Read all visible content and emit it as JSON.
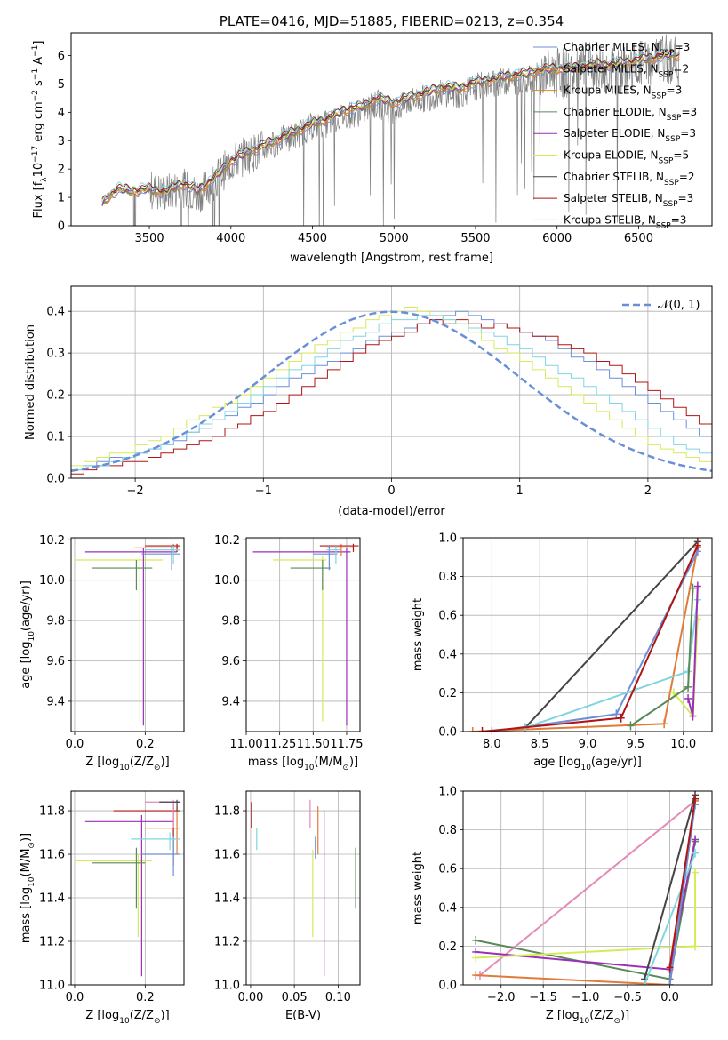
{
  "chart_data": [
    {
      "id": "spectrum",
      "type": "line",
      "title": "PLATE=0416, MJD=51885, FIBERID=0213, z=0.354",
      "xlabel": "wavelength [Angstrom, rest frame]",
      "ylabel": "Flux [f",
      "ylabel_sub": "λ",
      "ylabel_rest": "10",
      "ylabel_exp": "−17",
      "ylabel_tail": " erg cm",
      "ylabel_exp2": "−2",
      "ylabel_tail2": " s",
      "ylabel_exp3": "−1",
      "ylabel_tail3": " A",
      "ylabel_exp4": "−1",
      "ylabel_end": "]",
      "xlim": [
        3020,
        6950
      ],
      "ylim": [
        0,
        6.8
      ],
      "xticks": [
        3500,
        4000,
        4500,
        5000,
        5500,
        6000,
        6500
      ],
      "yticks": [
        0,
        1,
        2,
        3,
        4,
        5,
        6
      ],
      "grid": false,
      "legend_position": "top-right",
      "data_x": [
        3210,
        3300,
        3400,
        3500,
        3600,
        3700,
        3800,
        3900,
        4000,
        4100,
        4200,
        4300,
        4400,
        4500,
        4600,
        4700,
        4800,
        4900,
        5000,
        5100,
        5200,
        5300,
        5400,
        5500,
        5600,
        5700,
        5800,
        5900,
        6000,
        6100,
        6200,
        6300,
        6400,
        6500,
        6600,
        6700,
        6750
      ],
      "data_y": [
        0.9,
        1.3,
        1.2,
        1.25,
        1.15,
        1.35,
        1.1,
        1.6,
        2.2,
        2.5,
        2.7,
        3.0,
        3.2,
        3.5,
        3.6,
        3.9,
        4.0,
        4.3,
        4.0,
        4.4,
        4.5,
        4.7,
        4.6,
        4.9,
        5.0,
        5.1,
        5.1,
        5.3,
        5.4,
        5.3,
        5.6,
        5.5,
        5.4,
        5.7,
        5.8,
        5.9,
        5.8
      ],
      "model_y": [
        0.8,
        1.3,
        1.25,
        1.3,
        1.2,
        1.5,
        1.25,
        1.7,
        2.3,
        2.6,
        2.85,
        3.1,
        3.35,
        3.6,
        3.8,
        4.1,
        4.2,
        4.5,
        4.35,
        4.55,
        4.7,
        4.9,
        4.85,
        5.05,
        5.15,
        5.3,
        5.35,
        5.5,
        5.55,
        5.55,
        5.7,
        5.7,
        5.75,
        5.85,
        5.95,
        6.05,
        6.0
      ],
      "series": [
        {
          "name": "Chabrier MILES, N",
          "sub": "SSP",
          "suffix": "=3",
          "color": "#6d8fd6"
        },
        {
          "name": "Salpeter MILES, N",
          "sub": "SSP",
          "suffix": "=2",
          "color": "#e07b39"
        },
        {
          "name": "Kroupa MILES, N",
          "sub": "SSP",
          "suffix": "=3",
          "color": "#d28a2c"
        },
        {
          "name": "Chabrier ELODIE, N",
          "sub": "SSP",
          "suffix": "=3",
          "color": "#5a8a5a"
        },
        {
          "name": "Salpeter ELODIE, N",
          "sub": "SSP",
          "suffix": "=3",
          "color": "#9b30b5"
        },
        {
          "name": "Kroupa ELODIE, N",
          "sub": "SSP",
          "suffix": "=5",
          "color": "#d6ea5a"
        },
        {
          "name": "Chabrier STELIB, N",
          "sub": "SSP",
          "suffix": "=2",
          "color": "#444444"
        },
        {
          "name": "Salpeter STELIB, N",
          "sub": "SSP",
          "suffix": "=3",
          "color": "#b01515"
        },
        {
          "name": "Kroupa STELIB, N",
          "sub": "SSP",
          "suffix": "=3",
          "color": "#7fd6e0"
        }
      ]
    },
    {
      "id": "residuals",
      "type": "histogram",
      "xlabel": "(data-model)/error",
      "ylabel": "Normed distribution",
      "xlim": [
        -2.5,
        2.5
      ],
      "ylim": [
        0,
        0.46
      ],
      "xticks": [
        -2,
        -1,
        0,
        1,
        2
      ],
      "yticks": [
        0.0,
        0.1,
        0.2,
        0.3,
        0.4
      ],
      "grid": true,
      "legend_position": "top-right",
      "legend_label": "𝒩(0, 1)",
      "normal_color": "#6a8fd6",
      "bin_width": 0.1,
      "histogram_series": [
        {
          "color": "#6d8fd6",
          "values": [
            0.02,
            0.03,
            0.04,
            0.05,
            0.05,
            0.06,
            0.07,
            0.08,
            0.09,
            0.11,
            0.12,
            0.14,
            0.15,
            0.17,
            0.18,
            0.2,
            0.22,
            0.24,
            0.25,
            0.27,
            0.28,
            0.3,
            0.31,
            0.33,
            0.34,
            0.35,
            0.36,
            0.37,
            0.38,
            0.39,
            0.4,
            0.39,
            0.38,
            0.37,
            0.36,
            0.35,
            0.34,
            0.33,
            0.31,
            0.29,
            0.28,
            0.26,
            0.24,
            0.22,
            0.2,
            0.18,
            0.16,
            0.14,
            0.12,
            0.1
          ]
        },
        {
          "color": "#b01515",
          "values": [
            0.01,
            0.02,
            0.03,
            0.03,
            0.04,
            0.04,
            0.05,
            0.06,
            0.07,
            0.08,
            0.09,
            0.1,
            0.12,
            0.13,
            0.15,
            0.16,
            0.18,
            0.2,
            0.22,
            0.24,
            0.26,
            0.28,
            0.3,
            0.32,
            0.33,
            0.34,
            0.35,
            0.37,
            0.38,
            0.37,
            0.38,
            0.37,
            0.36,
            0.37,
            0.36,
            0.35,
            0.34,
            0.34,
            0.32,
            0.31,
            0.3,
            0.28,
            0.27,
            0.25,
            0.23,
            0.21,
            0.19,
            0.17,
            0.15,
            0.13
          ]
        },
        {
          "color": "#d6ea5a",
          "values": [
            0.03,
            0.04,
            0.05,
            0.06,
            0.06,
            0.08,
            0.09,
            0.1,
            0.12,
            0.14,
            0.15,
            0.17,
            0.18,
            0.2,
            0.22,
            0.24,
            0.26,
            0.28,
            0.3,
            0.32,
            0.33,
            0.35,
            0.36,
            0.38,
            0.39,
            0.4,
            0.41,
            0.4,
            0.39,
            0.38,
            0.37,
            0.35,
            0.33,
            0.31,
            0.3,
            0.28,
            0.26,
            0.24,
            0.22,
            0.2,
            0.18,
            0.16,
            0.14,
            0.12,
            0.1,
            0.08,
            0.07,
            0.06,
            0.05,
            0.04
          ]
        },
        {
          "color": "#7fd6e0",
          "values": [
            0.02,
            0.03,
            0.03,
            0.04,
            0.05,
            0.06,
            0.07,
            0.08,
            0.1,
            0.11,
            0.13,
            0.14,
            0.16,
            0.18,
            0.2,
            0.22,
            0.24,
            0.26,
            0.27,
            0.29,
            0.31,
            0.33,
            0.34,
            0.35,
            0.37,
            0.38,
            0.38,
            0.39,
            0.39,
            0.38,
            0.37,
            0.36,
            0.35,
            0.34,
            0.32,
            0.31,
            0.29,
            0.27,
            0.25,
            0.24,
            0.22,
            0.2,
            0.18,
            0.16,
            0.14,
            0.12,
            0.1,
            0.08,
            0.07,
            0.06
          ]
        }
      ]
    },
    {
      "id": "age-vs-z",
      "type": "errorbar",
      "xlabel": "Z [log",
      "xlabel_sub": "10",
      "xlabel_rest": "(Z/Z",
      "xlabel_sub2": "⊙",
      "xlabel_end": ")]",
      "ylabel": "age  [log",
      "ylabel_sub": "10",
      "ylabel_rest": "(age/yr)]",
      "xlim": [
        -0.01,
        0.31
      ],
      "ylim": [
        9.25,
        10.21
      ],
      "xticks": [
        0.0,
        0.2
      ],
      "yticks": [
        9.4,
        9.6,
        9.8,
        10.0,
        10.2
      ],
      "grid": true
    },
    {
      "id": "age-vs-mass",
      "type": "errorbar",
      "xlabel": "mass [log",
      "xlabel_sub": "10",
      "xlabel_rest": "(M/M",
      "xlabel_sub2": "⊙",
      "xlabel_end": ")]",
      "xlim": [
        11.0,
        11.85
      ],
      "ylim": [
        9.25,
        10.21
      ],
      "xticks": [
        11.0,
        11.25,
        11.5,
        11.75
      ],
      "xtick_labels": [
        "11.00",
        "11.25",
        "11.50",
        "11.75"
      ],
      "yticks": [
        9.4,
        9.6,
        9.8,
        10.0,
        10.2
      ],
      "grid": true
    },
    {
      "id": "weight-vs-age",
      "type": "line",
      "xlabel": "age  [log",
      "xlabel_sub": "10",
      "xlabel_rest": "(age/yr)]",
      "ylabel": "mass weight",
      "xlim": [
        7.7,
        10.3
      ],
      "ylim": [
        0,
        1.0
      ],
      "xticks": [
        8.0,
        8.5,
        9.0,
        9.5,
        10.0
      ],
      "yticks": [
        0.0,
        0.2,
        0.4,
        0.6,
        0.8,
        1.0
      ],
      "grid": true,
      "series": [
        {
          "color": "#444444",
          "x": [
            8.35,
            10.15
          ],
          "y": [
            0.02,
            0.98
          ]
        },
        {
          "color": "#e07b39",
          "x": [
            7.8,
            9.8,
            10.15
          ],
          "y": [
            0.0,
            0.04,
            0.95
          ]
        },
        {
          "color": "#6d8fd6",
          "x": [
            8.0,
            9.3,
            10.15
          ],
          "y": [
            0.0,
            0.09,
            0.93
          ]
        },
        {
          "color": "#7fd6e0",
          "x": [
            8.35,
            10.05,
            10.15
          ],
          "y": [
            0.02,
            0.31,
            0.68
          ]
        },
        {
          "color": "#d6ea5a",
          "x": [
            9.9,
            10.1,
            10.15
          ],
          "y": [
            0.2,
            0.08,
            0.58
          ]
        },
        {
          "color": "#5a8a5a",
          "x": [
            9.45,
            10.05,
            10.1
          ],
          "y": [
            0.03,
            0.23,
            0.74
          ]
        },
        {
          "color": "#9b30b5",
          "x": [
            10.05,
            10.1,
            10.15
          ],
          "y": [
            0.17,
            0.08,
            0.75
          ]
        },
        {
          "color": "#b01515",
          "x": [
            7.9,
            9.35,
            10.15
          ],
          "y": [
            0.0,
            0.07,
            0.96
          ]
        }
      ]
    },
    {
      "id": "mass-vs-z",
      "type": "errorbar",
      "xlabel": "Z [log",
      "xlabel_sub": "10",
      "xlabel_rest": "(Z/Z",
      "xlabel_sub2": "⊙",
      "xlabel_end": ")]",
      "ylabel": "mass [log",
      "ylabel_sub": "10",
      "ylabel_rest": "(M/M",
      "ylabel_sub2": "⊙",
      "ylabel_end": ")]",
      "xlim": [
        -0.01,
        0.31
      ],
      "ylim": [
        11.0,
        11.89
      ],
      "xticks": [
        0.0,
        0.2
      ],
      "yticks": [
        11.0,
        11.2,
        11.4,
        11.6,
        11.8
      ],
      "grid": true
    },
    {
      "id": "mass-vs-ebv",
      "type": "errorbar",
      "xlabel": "E(B-V)",
      "xlim": [
        -0.005,
        0.125
      ],
      "ylim": [
        11.0,
        11.89
      ],
      "xticks": [
        0.0,
        0.05,
        0.1
      ],
      "xtick_labels": [
        "0.00",
        "0.05",
        "0.10"
      ],
      "yticks": [
        11.0,
        11.2,
        11.4,
        11.6,
        11.8
      ],
      "grid": true
    },
    {
      "id": "weight-vs-z",
      "type": "line",
      "xlabel": "Z [log",
      "xlabel_sub": "10",
      "xlabel_rest": "(Z/Z",
      "xlabel_sub2": "⊙",
      "xlabel_end": ")]",
      "ylabel": "mass weight",
      "xlim": [
        -2.45,
        0.5
      ],
      "ylim": [
        0,
        1.0
      ],
      "xticks": [
        -2.0,
        -1.5,
        -1.0,
        -0.5,
        0.0
      ],
      "yticks": [
        0.0,
        0.2,
        0.4,
        0.6,
        0.8,
        1.0
      ],
      "grid": true,
      "series": [
        {
          "color": "#e38ab8",
          "x": [
            -2.25,
            0.3
          ],
          "y": [
            0.05,
            0.95
          ]
        },
        {
          "color": "#e07b39",
          "x": [
            -2.3,
            0.0,
            0.3
          ],
          "y": [
            0.05,
            0.0,
            0.95
          ]
        },
        {
          "color": "#5a8a5a",
          "x": [
            -2.3,
            0.0,
            0.3
          ],
          "y": [
            0.23,
            0.03,
            0.74
          ]
        },
        {
          "color": "#9b30b5",
          "x": [
            -2.3,
            0.0,
            0.3
          ],
          "y": [
            0.17,
            0.08,
            0.75
          ]
        },
        {
          "color": "#d6ea5a",
          "x": [
            -2.3,
            0.3,
            0.3
          ],
          "y": [
            0.14,
            0.2,
            0.58
          ]
        },
        {
          "color": "#444444",
          "x": [
            -0.3,
            0.3
          ],
          "y": [
            0.03,
            0.98
          ]
        },
        {
          "color": "#7fd6e0",
          "x": [
            -0.3,
            0.3
          ],
          "y": [
            0.0,
            0.68
          ]
        },
        {
          "color": "#6d8fd6",
          "x": [
            0.0,
            0.3
          ],
          "y": [
            0.0,
            0.93
          ]
        },
        {
          "color": "#b01515",
          "x": [
            0.0,
            0.3
          ],
          "y": [
            0.09,
            0.96
          ]
        }
      ]
    }
  ]
}
